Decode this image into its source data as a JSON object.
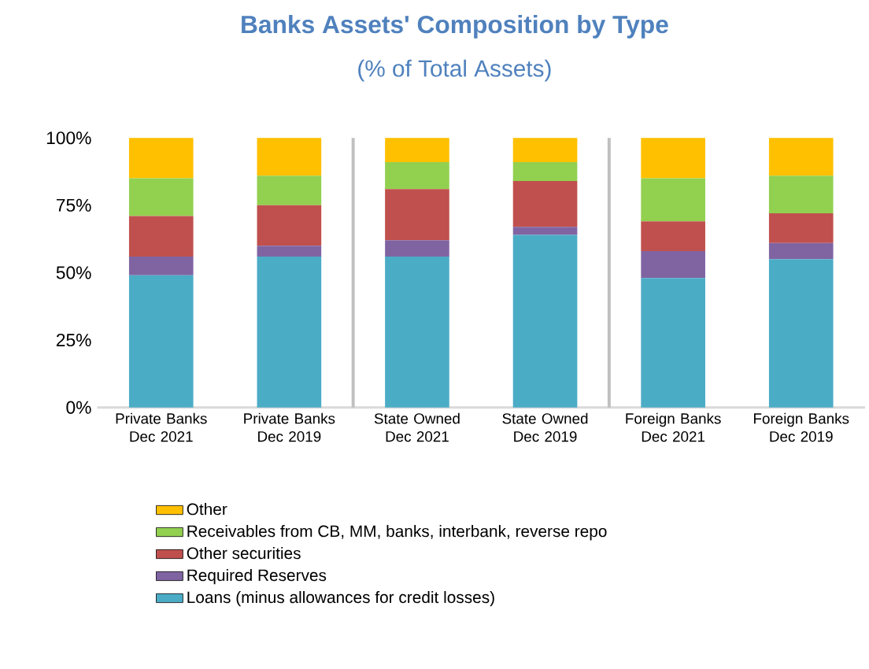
{
  "chart_data": {
    "type": "bar",
    "stacked": true,
    "title": "Banks Assets' Composition by Type",
    "subtitle": "(% of Total Assets)",
    "categories": [
      "Private Banks Dec 2021",
      "Private Banks Dec 2019",
      "State Owned Dec 2021",
      "State Owned Dec 2019",
      "Foreign Banks Dec 2021",
      "Foreign Banks Dec 2019"
    ],
    "series": [
      {
        "name": "Loans (minus allowances for credit losses)",
        "color": "#4bacc6",
        "values": [
          49,
          56,
          56,
          64,
          48,
          55
        ]
      },
      {
        "name": "Required Reserves",
        "color": "#8064a2",
        "values": [
          7,
          4,
          6,
          3,
          10,
          6
        ]
      },
      {
        "name": "Other securities",
        "color": "#c0504d",
        "values": [
          15,
          15,
          19,
          17,
          11,
          11
        ]
      },
      {
        "name": "Receivables from CB, MM, banks, interbank, reverse repo",
        "color": "#92d050",
        "values": [
          14,
          11,
          10,
          7,
          16,
          14
        ]
      },
      {
        "name": "Other",
        "color": "#ffc000",
        "values": [
          15,
          14,
          9,
          9,
          15,
          14
        ]
      }
    ],
    "ylim": [
      0,
      100
    ],
    "yticks": [
      {
        "value": 0,
        "label": "0%"
      },
      {
        "value": 25,
        "label": "25%"
      },
      {
        "value": 50,
        "label": "50%"
      },
      {
        "value": 75,
        "label": "75%"
      },
      {
        "value": 100,
        "label": "100%"
      }
    ],
    "grid": false,
    "legend": "bottom"
  }
}
